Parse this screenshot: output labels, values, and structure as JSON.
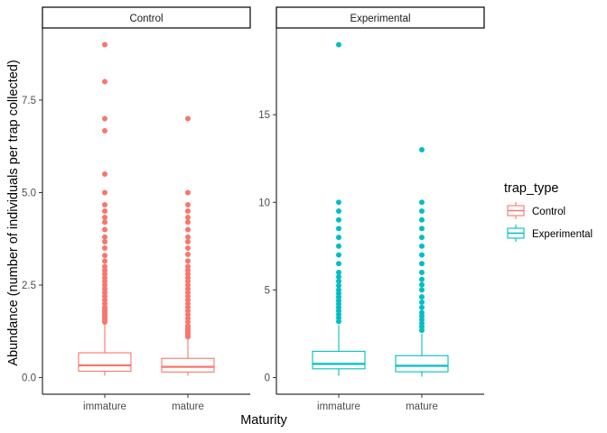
{
  "chart_data": {
    "type": "boxplot",
    "xlabel": "Maturity",
    "ylabel": "Abundance (number of individuals per trap collected)",
    "categories": [
      "immature",
      "mature"
    ],
    "legend": {
      "title": "trap_type",
      "placement": "right",
      "entries": [
        {
          "name": "Control",
          "color": "#F8766D"
        },
        {
          "name": "Experimental",
          "color": "#00BFC4"
        }
      ]
    },
    "grid": false,
    "facets": [
      {
        "strip": "Control",
        "color": "#F8766D",
        "ylim": [
          -0.45,
          9.45
        ],
        "yticks": [
          0.0,
          2.5,
          5.0,
          7.5
        ],
        "ytick_labels": [
          "0.0",
          "2.5",
          "5.0",
          "7.5"
        ],
        "boxes": [
          {
            "category": "immature",
            "min": 0.05,
            "q1": 0.17,
            "median": 0.33,
            "q3": 0.67,
            "whisker_high": 1.45,
            "outliers": [
              1.5,
              1.55,
              1.6,
              1.65,
              1.7,
              1.75,
              1.8,
              1.85,
              1.9,
              2.0,
              2.1,
              2.2,
              2.3,
              2.4,
              2.5,
              2.6,
              2.7,
              2.8,
              2.9,
              3.0,
              3.15,
              3.3,
              3.5,
              3.67,
              3.8,
              4.0,
              4.2,
              4.33,
              4.5,
              4.67,
              5.0,
              5.5,
              6.67,
              7.0,
              8.0,
              9.0
            ]
          },
          {
            "category": "mature",
            "min": 0.05,
            "q1": 0.15,
            "median": 0.29,
            "q3": 0.52,
            "whisker_high": 1.05,
            "outliers": [
              1.1,
              1.15,
              1.2,
              1.25,
              1.3,
              1.35,
              1.4,
              1.5,
              1.6,
              1.7,
              1.8,
              1.9,
              2.0,
              2.1,
              2.2,
              2.3,
              2.4,
              2.5,
              2.6,
              2.7,
              2.8,
              2.9,
              3.0,
              3.15,
              3.33,
              3.5,
              3.67,
              3.8,
              4.0,
              4.2,
              4.33,
              4.5,
              4.67,
              5.0,
              7.0
            ]
          }
        ]
      },
      {
        "strip": "Experimental",
        "color": "#00BFC4",
        "ylim": [
          -0.95,
          19.95
        ],
        "yticks": [
          0,
          5,
          10,
          15
        ],
        "ytick_labels": [
          "0",
          "5",
          "10",
          "15"
        ],
        "boxes": [
          {
            "category": "immature",
            "min": 0.1,
            "q1": 0.5,
            "median": 0.78,
            "q3": 1.5,
            "whisker_high": 3.0,
            "outliers": [
              3.2,
              3.4,
              3.6,
              3.8,
              4.0,
              4.2,
              4.4,
              4.6,
              4.8,
              5.0,
              5.25,
              5.5,
              5.75,
              6.0,
              6.5,
              7.0,
              7.5,
              8.0,
              8.5,
              9.0,
              9.5,
              10.0,
              19.0
            ]
          },
          {
            "category": "mature",
            "min": 0.05,
            "q1": 0.33,
            "median": 0.67,
            "q3": 1.25,
            "whisker_high": 2.5,
            "outliers": [
              2.7,
              2.9,
              3.1,
              3.3,
              3.5,
              3.7,
              4.0,
              4.3,
              4.6,
              5.0,
              5.3,
              5.6,
              6.0,
              6.5,
              7.0,
              7.5,
              8.0,
              8.5,
              9.0,
              9.5,
              10.0,
              13.0
            ]
          }
        ]
      }
    ]
  }
}
